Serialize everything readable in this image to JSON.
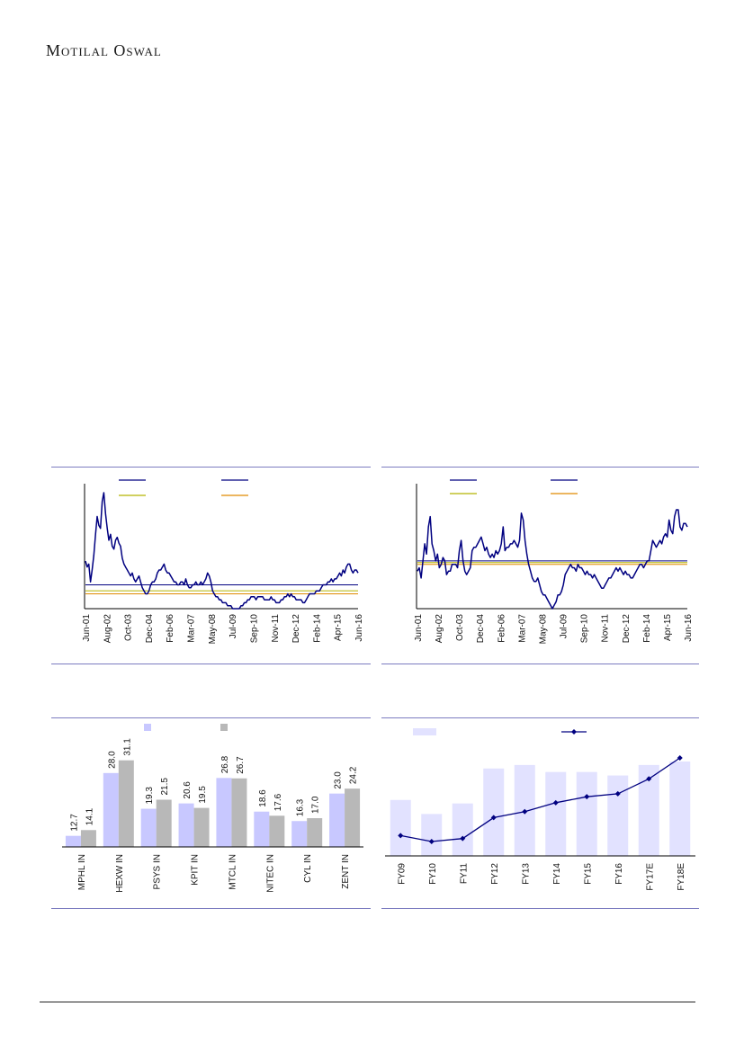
{
  "brand": {
    "logo_text": "Motilal Oswal"
  },
  "colors": {
    "line": "#000080",
    "olive": "#b5b500",
    "orange": "#e08a00",
    "bar_light": "#c8c8ff",
    "bar_dark": "#b8b8b8",
    "fill_light": "#e2e2ff",
    "rule": "#7c7cc0"
  },
  "chart_data": [
    {
      "type": "line",
      "x_ticks": [
        "Jun-01",
        "Aug-02",
        "Oct-03",
        "Dec-04",
        "Feb-06",
        "Mar-07",
        "May-08",
        "Jul-09",
        "Sep-10",
        "Nov-11",
        "Dec-12",
        "Feb-14",
        "Apr-15",
        "Jun-16"
      ],
      "series": [
        {
          "values": [
            29,
            27,
            28,
            22,
            26,
            31,
            38,
            44,
            41,
            40,
            49,
            52,
            45,
            40,
            36,
            38,
            34,
            33,
            36,
            37,
            35,
            34,
            30,
            28,
            27,
            26,
            25,
            24,
            25,
            23,
            22,
            23,
            24,
            22,
            20,
            19,
            18,
            18,
            19,
            21,
            22,
            22,
            23,
            25,
            26,
            26,
            27,
            28,
            26,
            25,
            25,
            24,
            23,
            22,
            22,
            21,
            21,
            22,
            22,
            21,
            23,
            21,
            20,
            20,
            21,
            21,
            22,
            21,
            21,
            22,
            21,
            22,
            23,
            25,
            24,
            22,
            19,
            18,
            17,
            17,
            16,
            16,
            15,
            15,
            15,
            14,
            14,
            14,
            13,
            13,
            13,
            13,
            13,
            14,
            14,
            15,
            15,
            16,
            16,
            17,
            17,
            17,
            16,
            17,
            17,
            17,
            17,
            16,
            16,
            16,
            16,
            17,
            16,
            16,
            15,
            15,
            15,
            16,
            16,
            17,
            17,
            18,
            17,
            18,
            17,
            17,
            16,
            16,
            16,
            16,
            15,
            15,
            16,
            17,
            18,
            18,
            18,
            18,
            19,
            19,
            19,
            20,
            21,
            21,
            21,
            22,
            22,
            23,
            22,
            23,
            23,
            24,
            25,
            24,
            26,
            25,
            27,
            28,
            28,
            26,
            25,
            26,
            26,
            25
          ]
        }
      ],
      "reference_lines": [
        21,
        19,
        18
      ]
    },
    {
      "type": "line",
      "x_ticks": [
        "Jun-01",
        "Aug-02",
        "Oct-03",
        "Dec-04",
        "Feb-06",
        "Mar-07",
        "May-08",
        "Jul-09",
        "Sep-10",
        "Nov-11",
        "Dec-12",
        "Feb-14",
        "Apr-15",
        "Jun-16"
      ],
      "series": [
        {
          "values": [
            19,
            20,
            17,
            22,
            27,
            24,
            32,
            35,
            27,
            25,
            22,
            24,
            20,
            21,
            23,
            22,
            18,
            19,
            19,
            21,
            21,
            21,
            20,
            25,
            28,
            22,
            19,
            18,
            19,
            20,
            25,
            26,
            26,
            27,
            28,
            29,
            27,
            25,
            26,
            24,
            23,
            24,
            23,
            25,
            24,
            25,
            27,
            32,
            25,
            26,
            26,
            27,
            27,
            28,
            27,
            26,
            28,
            36,
            34,
            28,
            24,
            21,
            19,
            17,
            16,
            16,
            17,
            15,
            13,
            12,
            12,
            11,
            10,
            9,
            8,
            9,
            10,
            12,
            12,
            13,
            15,
            18,
            19,
            20,
            21,
            20,
            20,
            19,
            21,
            20,
            20,
            19,
            18,
            19,
            18,
            18,
            17,
            18,
            17,
            16,
            15,
            14,
            14,
            15,
            16,
            17,
            17,
            18,
            19,
            20,
            19,
            20,
            19,
            18,
            19,
            18,
            18,
            17,
            17,
            18,
            19,
            20,
            21,
            21,
            20,
            21,
            22,
            22,
            25,
            28,
            27,
            26,
            27,
            28,
            27,
            29,
            30,
            29,
            34,
            31,
            30,
            35,
            37,
            37,
            32,
            31,
            33,
            33,
            32
          ]
        }
      ],
      "reference_lines": [
        22,
        21.5,
        21
      ]
    },
    {
      "type": "bar",
      "categories": [
        "MPHL IN",
        "HEXW IN",
        "PSYS IN",
        "KPIT IN",
        "MTCL IN",
        "NITEC IN",
        "CYL IN",
        "ZENT IN"
      ],
      "series": [
        {
          "values": [
            12.7,
            28.0,
            19.3,
            20.6,
            26.8,
            18.6,
            16.3,
            23.0
          ]
        },
        {
          "values": [
            14.1,
            31.1,
            21.5,
            19.5,
            26.7,
            17.6,
            17.0,
            24.2
          ]
        }
      ],
      "ylim": [
        10,
        33
      ]
    },
    {
      "type": "bar",
      "categories": [
        "FY09",
        "FY10",
        "FY11",
        "FY12",
        "FY13",
        "FY14",
        "FY15",
        "FY16",
        "FY17E",
        "FY18E"
      ],
      "series": [
        {
          "values": [
            16,
            12,
            15,
            25,
            26,
            24,
            24,
            23,
            26,
            27
          ]
        },
        {
          "values": [
            4,
            2,
            3,
            10,
            12,
            15,
            17,
            18,
            23,
            30
          ]
        }
      ]
    }
  ]
}
